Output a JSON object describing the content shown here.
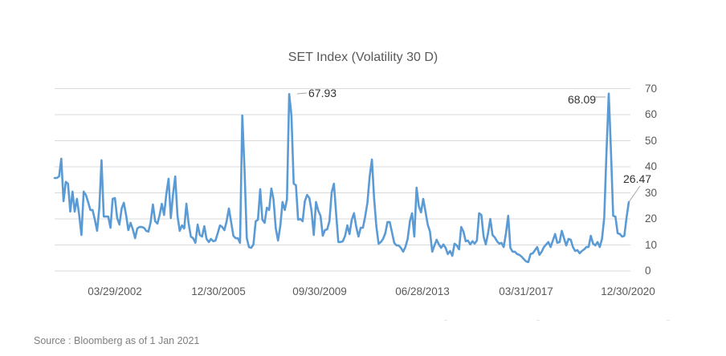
{
  "chart_data": {
    "type": "line",
    "title": "SET Index (Volatility 30 D)",
    "xlabel": "",
    "ylabel": "",
    "ylim": [
      0,
      70
    ],
    "y_axis_position": "right",
    "yticks": [
      "0",
      "10",
      "20",
      "30",
      "40",
      "50",
      "60",
      "70"
    ],
    "xticks": [
      "03/29/2002",
      "12/30/2005",
      "09/30/2009",
      "06/28/2013",
      "03/31/2017",
      "12/30/2020"
    ],
    "grid": true,
    "legend": "none",
    "line_color": "#5b9bd5",
    "annotations": [
      {
        "label": "67.93",
        "x": "2008 peak",
        "value": 67.93
      },
      {
        "label": "68.09",
        "x": "2020 peak",
        "value": 68.09
      },
      {
        "label": "26.47",
        "x": "12/30/2020",
        "value": 26.47
      }
    ],
    "series": [
      {
        "name": "SET Index Volatility 30D",
        "values": [
          35.7,
          35.7,
          36.3,
          43.1,
          26.8,
          34.2,
          33.5,
          22.8,
          30.5,
          22.8,
          27.7,
          21.5,
          13.8,
          30.5,
          29.2,
          26.5,
          23.4,
          23.4,
          19.7,
          15.4,
          24.0,
          42.5,
          20.9,
          20.9,
          20.9,
          16.6,
          27.7,
          28.0,
          20.3,
          17.8,
          24.0,
          26.2,
          21.5,
          15.7,
          18.5,
          16.0,
          12.6,
          16.3,
          16.9,
          16.9,
          16.6,
          15.4,
          15.1,
          18.8,
          25.5,
          19.1,
          18.2,
          21.5,
          25.8,
          21.5,
          29.5,
          35.4,
          20.3,
          29.5,
          36.3,
          21.2,
          15.4,
          17.5,
          16.3,
          25.8,
          18.2,
          13.2,
          12.6,
          10.8,
          17.8,
          13.8,
          13.2,
          17.2,
          12.3,
          11.1,
          12.3,
          11.4,
          11.7,
          14.5,
          17.5,
          16.9,
          15.7,
          19.1,
          24.0,
          18.8,
          13.5,
          12.6,
          12.6,
          10.8,
          59.7,
          38.8,
          12.6,
          9.2,
          8.9,
          10.2,
          19.1,
          19.7,
          31.4,
          19.7,
          18.5,
          24.3,
          23.4,
          31.7,
          27.4,
          16.3,
          11.7,
          17.2,
          26.5,
          23.4,
          27.4,
          67.9,
          59.7,
          33.5,
          32.9,
          19.7,
          20.0,
          19.1,
          26.8,
          29.2,
          28.0,
          23.1,
          13.8,
          26.5,
          23.1,
          21.2,
          13.5,
          15.7,
          16.0,
          19.1,
          30.2,
          33.5,
          22.2,
          11.1,
          11.1,
          11.4,
          13.5,
          17.5,
          14.2,
          19.7,
          22.2,
          16.9,
          13.2,
          16.6,
          16.6,
          20.9,
          26.2,
          36.3,
          42.8,
          28.0,
          17.2,
          10.5,
          11.1,
          12.3,
          14.5,
          18.8,
          18.8,
          14.8,
          10.8,
          9.8,
          9.8,
          8.9,
          7.4,
          9.2,
          12.3,
          19.1,
          22.2,
          13.2,
          32.0,
          24.9,
          22.5,
          27.7,
          22.8,
          17.8,
          15.1,
          7.4,
          9.8,
          12.0,
          10.2,
          8.9,
          10.2,
          8.9,
          6.5,
          7.7,
          5.8,
          10.5,
          9.8,
          8.3,
          16.9,
          15.1,
          11.4,
          11.7,
          10.2,
          11.4,
          10.5,
          11.7,
          22.2,
          21.5,
          13.2,
          10.2,
          14.5,
          20.0,
          13.8,
          12.9,
          11.4,
          10.5,
          10.8,
          9.2,
          14.5,
          21.2,
          8.9,
          7.4,
          7.4,
          6.5,
          6.2,
          5.5,
          4.6,
          3.7,
          3.4,
          6.5,
          6.8,
          8.0,
          9.2,
          6.2,
          7.4,
          9.2,
          10.2,
          11.1,
          9.2,
          11.7,
          14.2,
          10.8,
          11.1,
          15.4,
          12.6,
          9.8,
          12.3,
          12.0,
          9.2,
          7.7,
          8.0,
          6.8,
          7.7,
          8.3,
          9.2,
          9.2,
          13.5,
          10.5,
          9.8,
          11.1,
          9.2,
          12.3,
          20.6,
          45.8,
          68.1,
          46.5,
          21.2,
          20.9,
          14.5,
          14.2,
          13.2,
          13.5,
          20.6,
          26.5
        ]
      }
    ]
  },
  "footer": {
    "source": "Source : Bloomberg as of 1 Jan 2021"
  }
}
